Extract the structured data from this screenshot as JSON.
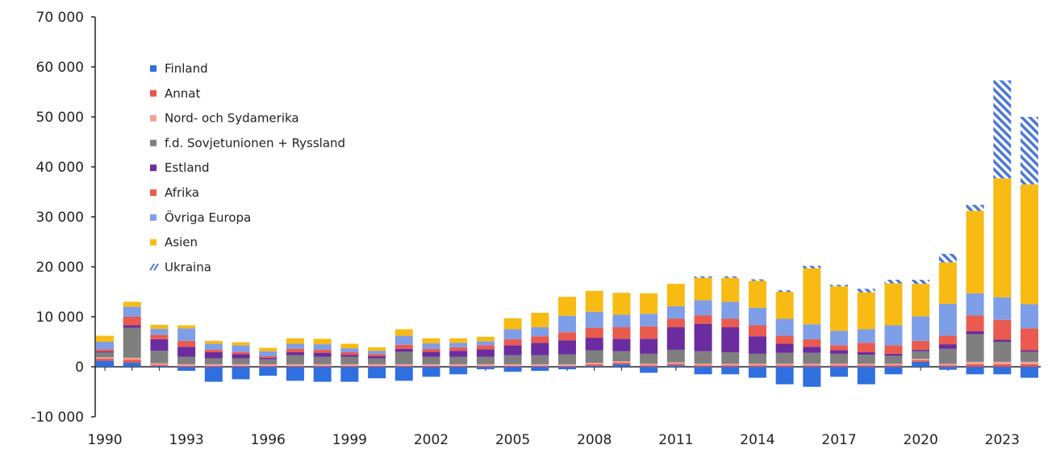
{
  "chart_data": {
    "type": "bar",
    "stacked": true,
    "title": "",
    "xlabel": "",
    "ylabel": "",
    "ylim": [
      -10000,
      70000
    ],
    "y_ticks": [
      "-10 000",
      "0",
      "10 000",
      "20 000",
      "30 000",
      "40 000",
      "50 000",
      "60 000",
      "70 000"
    ],
    "y_tick_values": [
      -10000,
      0,
      10000,
      20000,
      30000,
      40000,
      50000,
      60000,
      70000
    ],
    "x_tick_labels": [
      "1990",
      "1993",
      "1996",
      "1999",
      "2002",
      "2005",
      "2008",
      "2011",
      "2014",
      "2017",
      "2020",
      "2023"
    ],
    "categories": [
      "1990",
      "1991",
      "1992",
      "1993",
      "1994",
      "1995",
      "1996",
      "1997",
      "1998",
      "1999",
      "2000",
      "2001",
      "2002",
      "2003",
      "2004",
      "2005",
      "2006",
      "2007",
      "2008",
      "2009",
      "2010",
      "2011",
      "2012",
      "2013",
      "2014",
      "2015",
      "2016",
      "2017",
      "2018",
      "2019",
      "2020",
      "2021",
      "2022",
      "2023",
      "2024"
    ],
    "legend_position": "top-left",
    "grid": false,
    "colors": {
      "Finland": "#2f6fe0",
      "Annat": "#e8564b",
      "Nord- och Sydamerika": "#f2a19a",
      "f.d. Sovjetunionen + Ryssland": "#7f7f7f",
      "Estland": "#6a2c9e",
      "Afrika": "#ea5a4e",
      "Övriga Europa": "#7f9ee8",
      "Asien": "#f7bb14",
      "Ukraina": "#4a78d8",
      "axis": "#222222"
    },
    "series": [
      {
        "name": "Finland",
        "values": [
          1200,
          800,
          200,
          -800,
          -3000,
          -2500,
          -1800,
          -2800,
          -3000,
          -3000,
          -2300,
          -2800,
          -2000,
          -1500,
          -500,
          -1000,
          -800,
          -500,
          200,
          500,
          -1200,
          300,
          -1500,
          -1500,
          -2200,
          -3500,
          -4000,
          -2000,
          -3500,
          -1500,
          1000,
          -600,
          -1500,
          -1500,
          -2200
        ]
      },
      {
        "name": "Annat",
        "values": [
          400,
          600,
          200,
          200,
          200,
          200,
          200,
          200,
          200,
          200,
          200,
          200,
          200,
          200,
          200,
          200,
          200,
          200,
          300,
          300,
          300,
          300,
          300,
          300,
          300,
          300,
          300,
          300,
          300,
          300,
          300,
          300,
          500,
          500,
          500
        ]
      },
      {
        "name": "Nord- och Sydamerika",
        "values": [
          300,
          400,
          300,
          300,
          300,
          300,
          300,
          300,
          300,
          300,
          300,
          300,
          300,
          300,
          300,
          300,
          300,
          300,
          300,
          300,
          300,
          300,
          300,
          300,
          300,
          300,
          300,
          300,
          300,
          300,
          300,
          300,
          500,
          500,
          500
        ]
      },
      {
        "name": "f.d. Sovjetunionen + Ryssland",
        "values": [
          1000,
          6000,
          2500,
          1500,
          1200,
          1200,
          1000,
          1800,
          1500,
          1500,
          1200,
          2500,
          1500,
          1500,
          1500,
          1800,
          1800,
          2000,
          2500,
          2000,
          2000,
          2500,
          2500,
          2300,
          2000,
          2200,
          2200,
          2000,
          1800,
          1600,
          1500,
          3000,
          5500,
          4000,
          2000
        ]
      },
      {
        "name": "Estland",
        "values": [
          200,
          500,
          2300,
          2000,
          1200,
          800,
          300,
          600,
          800,
          400,
          400,
          600,
          1000,
          1200,
          1500,
          2000,
          2500,
          2800,
          2500,
          2500,
          3000,
          4500,
          5500,
          5000,
          3500,
          1800,
          1200,
          700,
          500,
          400,
          300,
          900,
          600,
          400,
          300
        ]
      },
      {
        "name": "Afrika",
        "values": [
          400,
          1700,
          900,
          1200,
          500,
          400,
          300,
          700,
          600,
          500,
          400,
          800,
          600,
          700,
          800,
          1200,
          1300,
          1600,
          2000,
          2300,
          2500,
          1700,
          1700,
          1700,
          2200,
          1600,
          1500,
          1000,
          1900,
          1700,
          1800,
          1700,
          3200,
          4000,
          4400
        ]
      },
      {
        "name": "Övriga Europa",
        "values": [
          1500,
          2000,
          1200,
          2500,
          1200,
          1400,
          1000,
          1000,
          1100,
          800,
          700,
          1800,
          1100,
          900,
          800,
          2000,
          1800,
          3300,
          3200,
          2500,
          2500,
          2500,
          3000,
          3400,
          3500,
          3400,
          3000,
          2900,
          2700,
          4000,
          4900,
          6400,
          4400,
          4500,
          4800
        ]
      },
      {
        "name": "Asien",
        "values": [
          1200,
          1000,
          800,
          600,
          600,
          600,
          700,
          1100,
          1100,
          900,
          700,
          1300,
          1000,
          900,
          900,
          2200,
          2900,
          3800,
          4200,
          4400,
          4100,
          4500,
          4500,
          4800,
          5400,
          5400,
          11200,
          8900,
          7400,
          8400,
          6500,
          8300,
          16500,
          23800,
          24000
        ]
      },
      {
        "name": "Ukraina",
        "values": [
          0,
          0,
          0,
          0,
          0,
          0,
          0,
          0,
          0,
          0,
          0,
          0,
          0,
          0,
          0,
          0,
          0,
          0,
          0,
          0,
          0,
          0,
          300,
          300,
          300,
          300,
          500,
          300,
          700,
          700,
          800,
          1700,
          1200,
          19600,
          13500
        ]
      }
    ]
  }
}
